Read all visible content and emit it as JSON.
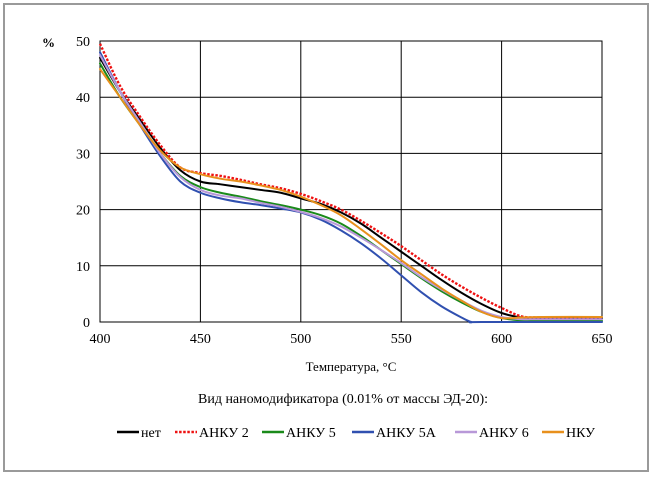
{
  "chart_data": {
    "type": "line",
    "title": "",
    "xlabel": "Температура, °С",
    "ylabel": "%",
    "xlim": [
      400,
      650
    ],
    "ylim": [
      0,
      50
    ],
    "xticks": [
      400,
      450,
      500,
      550,
      600,
      650
    ],
    "yticks": [
      0,
      10,
      20,
      30,
      40,
      50
    ],
    "grid": true,
    "legend_title": "Вид наномодификатора (0.01% от массы ЭД-20):",
    "legend_position": "bottom",
    "series": [
      {
        "name": "нет",
        "color": "#000000",
        "style": "solid",
        "x": [
          400,
          410,
          420,
          430,
          440,
          450,
          460,
          470,
          480,
          490,
          500,
          510,
          520,
          530,
          540,
          550,
          560,
          570,
          580,
          590,
          600,
          610,
          620,
          650
        ],
        "y": [
          47,
          41,
          36,
          31,
          27,
          25,
          24.5,
          24,
          23.5,
          23,
          22,
          21,
          19.5,
          17.5,
          15,
          12.5,
          10,
          7.5,
          5.2,
          3.2,
          1.6,
          0.8,
          0.7,
          0.7
        ]
      },
      {
        "name": "АНКУ 2",
        "color": "#ee1111",
        "style": "dashed",
        "x": [
          400,
          410,
          420,
          430,
          440,
          450,
          460,
          470,
          480,
          490,
          500,
          510,
          520,
          530,
          540,
          550,
          560,
          570,
          580,
          590,
          600,
          610,
          620,
          650
        ],
        "y": [
          49.5,
          42,
          36.5,
          31.5,
          27.5,
          26.5,
          26,
          25.3,
          24.5,
          23.8,
          22.8,
          21.5,
          20,
          18,
          15.8,
          13.5,
          11,
          8.5,
          6.3,
          4.3,
          2.5,
          1.0,
          0.8,
          0.8
        ]
      },
      {
        "name": "АНКУ 5",
        "color": "#1a8a1a",
        "style": "solid",
        "x": [
          400,
          410,
          420,
          430,
          440,
          450,
          460,
          470,
          480,
          490,
          500,
          510,
          520,
          530,
          540,
          550,
          560,
          570,
          580,
          590,
          600,
          610,
          620,
          650
        ],
        "y": [
          46,
          40,
          35,
          30,
          26,
          24,
          23,
          22.3,
          21.5,
          20.8,
          20,
          19,
          17.5,
          15.3,
          12.8,
          10.3,
          7.8,
          5.5,
          3.5,
          1.8,
          0.7,
          0.3,
          0.2,
          0.2
        ]
      },
      {
        "name": "АНКУ 5А",
        "color": "#3050b0",
        "style": "solid",
        "x": [
          400,
          410,
          420,
          430,
          440,
          450,
          460,
          470,
          480,
          490,
          500,
          510,
          520,
          530,
          540,
          550,
          560,
          570,
          580,
          585,
          590,
          650
        ],
        "y": [
          48,
          41,
          35,
          29.5,
          25,
          23,
          22,
          21.3,
          20.8,
          20.2,
          19.5,
          18.2,
          16.3,
          14,
          11.3,
          8.3,
          5.3,
          2.8,
          0.8,
          0,
          0,
          0
        ]
      },
      {
        "name": "АНКУ 6",
        "color": "#b898d8",
        "style": "solid",
        "x": [
          400,
          410,
          420,
          430,
          440,
          450,
          460,
          470,
          480,
          490,
          500,
          510,
          520,
          530,
          540,
          550,
          560,
          570,
          580,
          590,
          600,
          610,
          620,
          650
        ],
        "y": [
          47.5,
          41,
          35.5,
          30,
          25.8,
          23.5,
          22.5,
          22,
          21.2,
          20.5,
          19.6,
          18.5,
          17,
          15,
          12.8,
          10.5,
          8,
          5.8,
          3.8,
          2.0,
          0.9,
          0.5,
          0.5,
          0.5
        ]
      },
      {
        "name": "НКУ",
        "color": "#e8901c",
        "style": "solid",
        "x": [
          400,
          410,
          420,
          430,
          440,
          450,
          460,
          470,
          480,
          490,
          500,
          510,
          520,
          530,
          540,
          550,
          560,
          570,
          580,
          590,
          600,
          610,
          620,
          650
        ],
        "y": [
          45,
          40,
          35,
          30.5,
          27.5,
          26.3,
          25.5,
          25,
          24.3,
          23.5,
          22.3,
          20.8,
          19,
          16.5,
          13.8,
          11,
          8.5,
          6,
          3.8,
          1.8,
          0.7,
          0.8,
          0.9,
          0.9
        ]
      }
    ]
  }
}
